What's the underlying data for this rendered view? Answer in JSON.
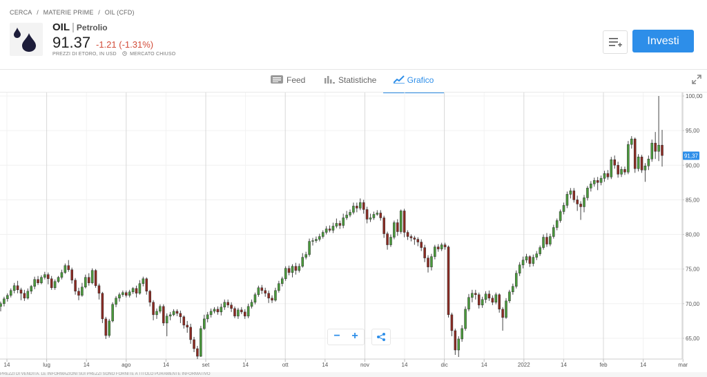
{
  "breadcrumb": {
    "item1": "CERCA",
    "item2": "MATERIE PRIME",
    "item3": "OIL (CFD)",
    "separator": "/"
  },
  "instrument": {
    "symbol": "OIL",
    "name": "Petrolio",
    "price": "91.37",
    "change": "-1.21 (-1.31%)",
    "prices_note": "PREZZI DI ETORO, IN USD",
    "market_status": "MERCATO CHIUSO",
    "icon": "oil-drops-icon"
  },
  "actions": {
    "watchlist_icon": "add-to-watchlist-icon",
    "invest_label": "Investi"
  },
  "tabs": [
    {
      "label": "Feed",
      "icon": "feed-icon"
    },
    {
      "label": "Statistiche",
      "icon": "stats-icon"
    },
    {
      "label": "Grafico",
      "icon": "chart-icon",
      "active": true
    }
  ],
  "controls": {
    "zoom_out": "−",
    "zoom_in": "+",
    "share_icon": "share-icon",
    "fullscreen_icon": "expand-icon"
  },
  "footer_text": "PREZZI DI VENDITA. LE INFORMAZIONI SUI PREZZI SONO FORNITE A TITOLO PURAMENTE INFORMATIVO",
  "colors": {
    "accent": "#2d8ee9",
    "up": "#4a9a3c",
    "down": "#8b2a22",
    "negative": "#d24b38"
  },
  "chart_data": {
    "type": "candlestick",
    "y_ticks": [
      "100,00",
      "95,00",
      "90,00",
      "85,00",
      "80,00",
      "75,00",
      "70,00",
      "65,00"
    ],
    "y_range": [
      62,
      100.5
    ],
    "x_ticks": [
      "14",
      "lug",
      "14",
      "ago",
      "14",
      "set",
      "14",
      "ott",
      "14",
      "nov",
      "14",
      "dic",
      "14",
      "2022",
      "14",
      "feb",
      "14",
      "mar"
    ],
    "last_price_label": "91,37",
    "grid": true,
    "candles": [
      [
        69.6,
        70.0,
        68.9,
        70.3
      ],
      [
        70.0,
        70.7,
        69.6,
        71.0
      ],
      [
        70.7,
        71.2,
        70.3,
        71.5
      ],
      [
        71.2,
        71.9,
        70.9,
        72.2
      ],
      [
        71.9,
        72.6,
        71.5,
        73.0
      ],
      [
        72.6,
        72.0,
        71.5,
        73.3
      ],
      [
        72.0,
        71.5,
        70.5,
        72.3
      ],
      [
        71.5,
        70.8,
        70.4,
        72.0
      ],
      [
        70.8,
        71.8,
        70.6,
        72.2
      ],
      [
        71.8,
        72.5,
        71.4,
        72.7
      ],
      [
        72.5,
        73.5,
        72.1,
        73.9
      ],
      [
        73.5,
        73.0,
        72.7,
        74.0
      ],
      [
        73.0,
        73.8,
        72.8,
        74.1
      ],
      [
        73.8,
        74.2,
        73.5,
        74.6
      ],
      [
        74.2,
        73.6,
        72.8,
        74.5
      ],
      [
        73.6,
        72.3,
        72.0,
        74.0
      ],
      [
        72.3,
        73.2,
        72.0,
        73.5
      ],
      [
        73.2,
        73.8,
        73.0,
        74.0
      ],
      [
        73.8,
        74.5,
        73.5,
        74.9
      ],
      [
        74.5,
        75.5,
        74.3,
        75.8
      ],
      [
        75.5,
        74.9,
        74.6,
        76.3
      ],
      [
        74.9,
        73.4,
        72.9,
        75.2
      ],
      [
        73.4,
        71.8,
        71.3,
        73.7
      ],
      [
        71.8,
        71.2,
        70.5,
        72.3
      ],
      [
        71.2,
        72.4,
        71.0,
        73.0
      ],
      [
        72.4,
        73.8,
        72.2,
        74.2
      ],
      [
        73.8,
        73.0,
        72.6,
        74.4
      ],
      [
        73.0,
        74.8,
        72.8,
        75.1
      ],
      [
        74.8,
        72.6,
        72.3,
        75.0
      ],
      [
        72.6,
        71.5,
        70.6,
        72.9
      ],
      [
        71.5,
        67.8,
        67.2,
        71.7
      ],
      [
        67.8,
        65.4,
        64.9,
        68.1
      ],
      [
        65.4,
        67.5,
        65.1,
        67.8
      ],
      [
        67.5,
        69.9,
        67.3,
        70.2
      ],
      [
        69.9,
        70.8,
        69.5,
        71.1
      ],
      [
        70.8,
        71.3,
        70.3,
        71.6
      ],
      [
        71.3,
        71.6,
        71.0,
        71.9
      ],
      [
        71.6,
        71.2,
        70.9,
        71.9
      ],
      [
        71.2,
        71.7,
        70.9,
        72.0
      ],
      [
        71.7,
        72.2,
        71.4,
        72.4
      ],
      [
        72.2,
        71.5,
        70.9,
        72.6
      ],
      [
        71.5,
        72.9,
        71.3,
        73.4
      ],
      [
        72.9,
        73.6,
        72.5,
        73.9
      ],
      [
        73.6,
        71.8,
        71.3,
        73.8
      ],
      [
        71.8,
        70.2,
        69.6,
        72.0
      ],
      [
        70.2,
        68.4,
        67.6,
        70.5
      ],
      [
        68.4,
        68.9,
        67.8,
        69.3
      ],
      [
        68.9,
        69.6,
        68.6,
        69.9
      ],
      [
        69.6,
        67.2,
        66.8,
        69.9
      ],
      [
        67.2,
        68.2,
        65.3,
        68.6
      ],
      [
        68.2,
        68.4,
        67.6,
        68.8
      ],
      [
        68.4,
        68.9,
        68.2,
        69.2
      ],
      [
        68.9,
        68.6,
        68.2,
        69.2
      ],
      [
        68.6,
        68.1,
        67.2,
        69.0
      ],
      [
        68.1,
        66.9,
        66.4,
        68.3
      ],
      [
        66.9,
        66.6,
        65.8,
        67.5
      ],
      [
        66.6,
        64.8,
        64.2,
        67.1
      ],
      [
        64.8,
        63.5,
        63.0,
        65.2
      ],
      [
        63.5,
        62.4,
        62.0,
        63.9
      ],
      [
        62.4,
        66.4,
        62.3,
        66.8
      ],
      [
        66.4,
        67.8,
        66.2,
        68.4
      ],
      [
        67.8,
        68.4,
        67.3,
        68.8
      ],
      [
        68.4,
        68.9,
        68.0,
        69.3
      ],
      [
        68.9,
        69.2,
        68.6,
        69.5
      ],
      [
        69.2,
        68.8,
        68.4,
        69.6
      ],
      [
        68.8,
        69.5,
        68.3,
        70.0
      ],
      [
        69.5,
        70.2,
        69.1,
        70.6
      ],
      [
        70.2,
        69.8,
        69.4,
        70.6
      ],
      [
        69.8,
        69.3,
        68.8,
        70.2
      ],
      [
        69.3,
        68.2,
        67.9,
        69.6
      ],
      [
        68.2,
        69.1,
        67.8,
        69.4
      ],
      [
        69.1,
        68.8,
        68.5,
        69.5
      ],
      [
        68.8,
        68.2,
        67.8,
        69.2
      ],
      [
        68.2,
        69.6,
        67.9,
        70.0
      ],
      [
        69.6,
        70.2,
        69.3,
        70.6
      ],
      [
        70.2,
        71.3,
        69.9,
        71.6
      ],
      [
        71.3,
        72.3,
        71.0,
        72.6
      ],
      [
        72.3,
        71.9,
        71.4,
        72.7
      ],
      [
        71.9,
        71.5,
        71.0,
        72.3
      ],
      [
        71.5,
        70.8,
        70.1,
        71.9
      ],
      [
        70.8,
        70.5,
        70.1,
        71.2
      ],
      [
        70.5,
        71.9,
        70.3,
        72.3
      ],
      [
        71.9,
        72.9,
        71.6,
        73.3
      ],
      [
        72.9,
        73.6,
        72.5,
        73.9
      ],
      [
        73.6,
        75.1,
        73.3,
        75.4
      ],
      [
        75.1,
        74.5,
        74.1,
        75.5
      ],
      [
        74.5,
        75.4,
        73.8,
        75.7
      ],
      [
        75.4,
        74.8,
        74.2,
        75.9
      ],
      [
        74.8,
        75.4,
        74.5,
        75.8
      ],
      [
        75.4,
        76.7,
        75.2,
        77.3
      ],
      [
        76.7,
        77.1,
        76.4,
        77.5
      ],
      [
        77.1,
        79.0,
        76.8,
        79.4
      ],
      [
        79.0,
        79.1,
        78.4,
        79.5
      ],
      [
        79.1,
        79.3,
        78.8,
        79.7
      ],
      [
        79.3,
        79.7,
        79.0,
        80.1
      ],
      [
        79.7,
        80.3,
        79.4,
        80.6
      ],
      [
        80.3,
        80.8,
        80.0,
        81.2
      ],
      [
        80.8,
        80.6,
        80.3,
        81.3
      ],
      [
        80.6,
        81.2,
        80.2,
        81.7
      ],
      [
        81.2,
        81.6,
        80.9,
        82.3
      ],
      [
        81.6,
        81.3,
        80.8,
        82.0
      ],
      [
        81.3,
        82.4,
        80.9,
        83.0
      ],
      [
        82.4,
        82.8,
        82.1,
        83.4
      ],
      [
        82.8,
        83.2,
        82.5,
        83.6
      ],
      [
        83.2,
        84.1,
        82.9,
        84.6
      ],
      [
        84.1,
        83.8,
        83.2,
        84.6
      ],
      [
        83.8,
        84.6,
        83.5,
        85.2
      ],
      [
        84.6,
        83.6,
        83.0,
        85.0
      ],
      [
        83.6,
        82.2,
        81.6,
        84.0
      ],
      [
        82.2,
        82.4,
        81.8,
        83.0
      ],
      [
        82.4,
        82.9,
        82.1,
        83.3
      ],
      [
        82.9,
        83.1,
        82.7,
        83.5
      ],
      [
        83.1,
        82.4,
        82.0,
        83.5
      ],
      [
        82.4,
        80.1,
        79.5,
        82.7
      ],
      [
        80.1,
        78.5,
        77.8,
        80.4
      ],
      [
        78.5,
        79.6,
        78.2,
        80.0
      ],
      [
        79.6,
        81.7,
        79.3,
        82.0
      ],
      [
        81.7,
        80.4,
        79.8,
        82.2
      ],
      [
        80.4,
        83.4,
        80.1,
        83.6
      ],
      [
        83.4,
        80.3,
        79.6,
        83.7
      ],
      [
        80.3,
        79.7,
        79.2,
        80.6
      ],
      [
        79.7,
        79.5,
        79.0,
        80.0
      ],
      [
        79.5,
        79.3,
        78.5,
        79.8
      ],
      [
        79.3,
        78.9,
        78.3,
        79.6
      ],
      [
        78.9,
        78.1,
        77.6,
        79.3
      ],
      [
        78.1,
        76.6,
        76.0,
        78.5
      ],
      [
        76.6,
        75.3,
        74.5,
        77.0
      ],
      [
        75.3,
        76.8,
        74.8,
        77.2
      ],
      [
        76.8,
        78.2,
        76.4,
        78.5
      ],
      [
        78.2,
        77.9,
        77.5,
        78.6
      ],
      [
        77.9,
        78.5,
        77.6,
        78.8
      ],
      [
        78.5,
        78.2,
        77.8,
        78.8
      ],
      [
        78.2,
        68.4,
        68.0,
        78.4
      ],
      [
        68.4,
        66.1,
        65.3,
        68.7
      ],
      [
        66.1,
        63.3,
        62.6,
        66.4
      ],
      [
        63.3,
        64.9,
        62.3,
        65.3
      ],
      [
        64.9,
        66.4,
        64.5,
        66.9
      ],
      [
        66.4,
        69.2,
        66.1,
        69.6
      ],
      [
        69.2,
        70.9,
        68.9,
        71.4
      ],
      [
        70.9,
        71.5,
        70.2,
        72.0
      ],
      [
        71.5,
        71.3,
        70.6,
        72.0
      ],
      [
        71.3,
        69.8,
        69.3,
        71.6
      ],
      [
        69.8,
        70.6,
        69.4,
        71.0
      ],
      [
        70.6,
        71.4,
        70.1,
        71.8
      ],
      [
        71.4,
        70.8,
        70.4,
        71.9
      ],
      [
        70.8,
        70.2,
        69.8,
        71.2
      ],
      [
        70.2,
        71.3,
        69.9,
        71.6
      ],
      [
        71.3,
        69.2,
        68.7,
        71.5
      ],
      [
        69.2,
        68.0,
        66.1,
        69.5
      ],
      [
        68.0,
        70.4,
        67.8,
        70.8
      ],
      [
        70.4,
        71.7,
        70.1,
        72.0
      ],
      [
        71.7,
        72.5,
        71.3,
        72.9
      ],
      [
        72.5,
        74.4,
        72.2,
        74.8
      ],
      [
        74.4,
        75.6,
        74.0,
        76.0
      ],
      [
        75.6,
        76.3,
        75.1,
        76.8
      ],
      [
        76.3,
        76.8,
        75.9,
        77.2
      ],
      [
        76.8,
        75.8,
        75.3,
        77.0
      ],
      [
        75.8,
        76.7,
        75.4,
        77.1
      ],
      [
        76.7,
        77.2,
        76.3,
        77.6
      ],
      [
        77.2,
        78.1,
        76.9,
        78.4
      ],
      [
        78.1,
        79.6,
        77.8,
        80.0
      ],
      [
        79.6,
        78.6,
        78.2,
        80.2
      ],
      [
        78.6,
        79.7,
        78.3,
        80.1
      ],
      [
        79.7,
        81.0,
        79.4,
        81.4
      ],
      [
        81.0,
        82.0,
        80.6,
        82.3
      ],
      [
        82.0,
        83.3,
        81.7,
        83.6
      ],
      [
        83.3,
        84.2,
        82.9,
        84.6
      ],
      [
        84.2,
        85.8,
        83.8,
        86.2
      ],
      [
        85.8,
        86.3,
        85.2,
        86.7
      ],
      [
        86.3,
        85.0,
        84.6,
        86.7
      ],
      [
        85.0,
        84.4,
        83.4,
        85.6
      ],
      [
        84.4,
        84.0,
        82.1,
        84.8
      ],
      [
        84.0,
        85.3,
        83.2,
        85.7
      ],
      [
        85.3,
        86.7,
        84.9,
        87.0
      ],
      [
        86.7,
        87.3,
        86.2,
        87.7
      ],
      [
        87.3,
        87.8,
        86.9,
        88.2
      ],
      [
        87.8,
        87.5,
        86.4,
        88.3
      ],
      [
        87.5,
        88.1,
        87.1,
        88.5
      ],
      [
        88.1,
        88.8,
        87.6,
        89.2
      ],
      [
        88.8,
        88.3,
        87.9,
        89.3
      ],
      [
        88.3,
        90.8,
        88.0,
        91.2
      ],
      [
        90.8,
        90.0,
        89.5,
        91.4
      ],
      [
        90.0,
        88.7,
        88.2,
        90.5
      ],
      [
        88.7,
        89.4,
        88.3,
        89.8
      ],
      [
        89.4,
        89.0,
        88.6,
        89.8
      ],
      [
        89.0,
        93.0,
        88.7,
        93.5
      ],
      [
        93.0,
        93.8,
        92.4,
        94.2
      ],
      [
        93.8,
        89.5,
        88.9,
        94.0
      ],
      [
        89.5,
        91.2,
        89.1,
        91.6
      ],
      [
        91.2,
        89.3,
        88.9,
        91.5
      ],
      [
        89.3,
        89.9,
        87.6,
        90.3
      ],
      [
        89.9,
        90.9,
        89.3,
        91.4
      ],
      [
        90.9,
        93.2,
        90.5,
        93.7
      ],
      [
        93.2,
        92.0,
        90.9,
        94.8
      ],
      [
        92.0,
        92.9,
        90.6,
        100.0
      ],
      [
        92.9,
        91.4,
        89.8,
        95.1
      ]
    ]
  }
}
